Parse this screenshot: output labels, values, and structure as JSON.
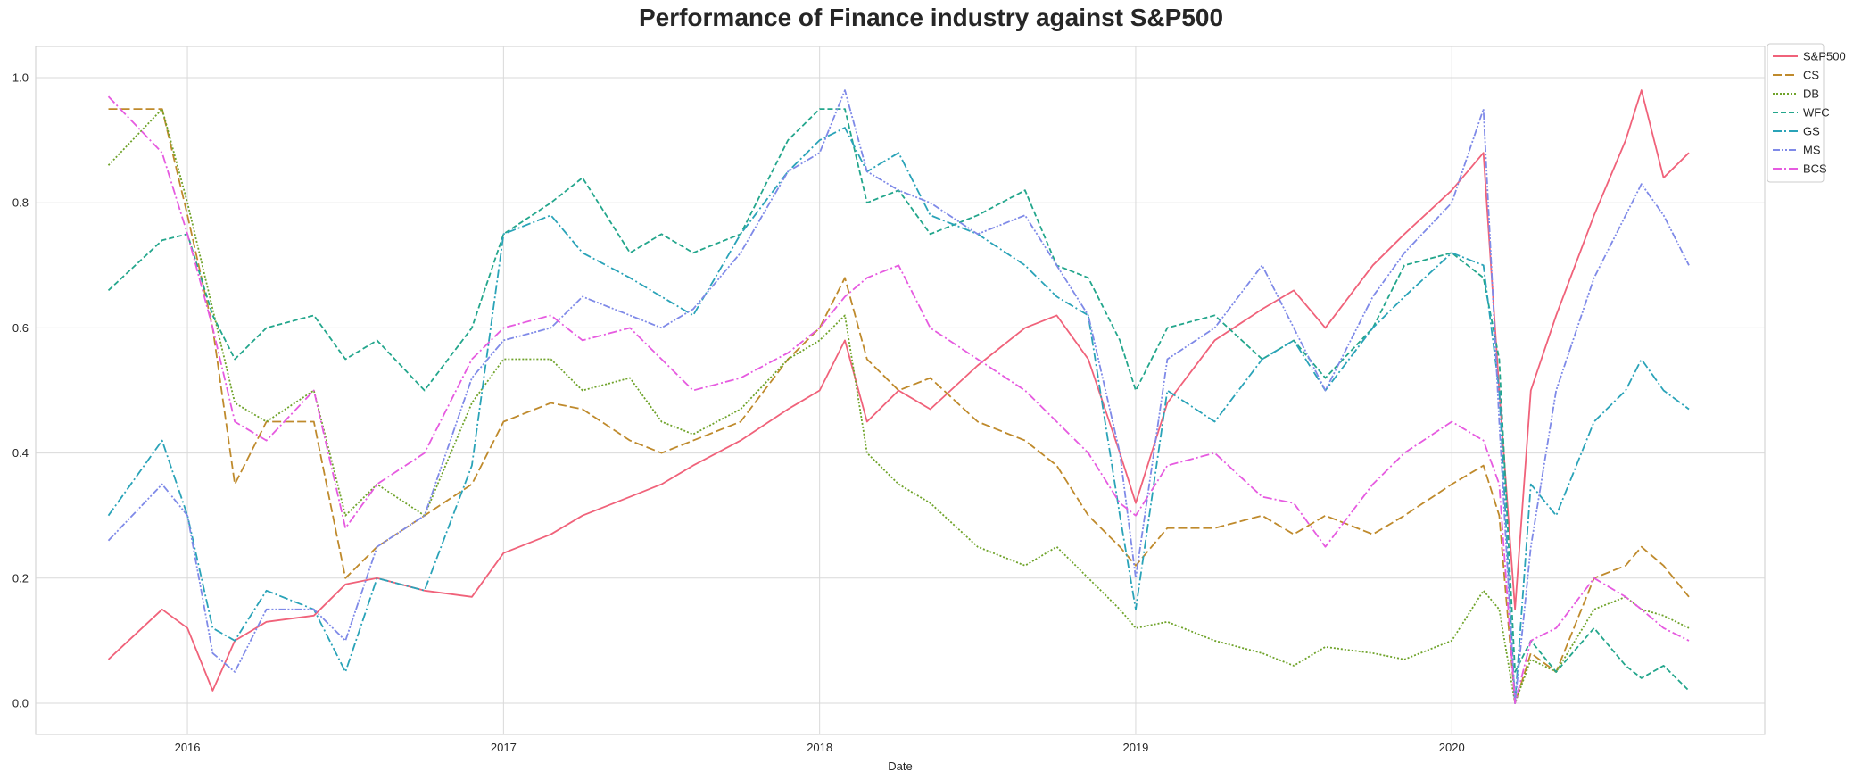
{
  "chart_data": {
    "type": "line",
    "title": "Performance of Finance industry against S&P500",
    "xlabel": "Date",
    "ylabel": "",
    "xlim": [
      2015.52,
      2020.99
    ],
    "ylim": [
      -0.05,
      1.05
    ],
    "x_ticks": [
      2016,
      2017,
      2018,
      2019,
      2020
    ],
    "x_tick_labels": [
      "2016",
      "2017",
      "2018",
      "2019",
      "2020"
    ],
    "y_ticks": [
      0.0,
      0.2,
      0.4,
      0.6,
      0.8,
      1.0
    ],
    "y_tick_labels": [
      "0.0",
      "0.2",
      "0.4",
      "0.6",
      "0.8",
      "1.0"
    ],
    "grid": true,
    "legend_position": "outside-top-right",
    "x": [
      2015.75,
      2015.92,
      2016.0,
      2016.08,
      2016.15,
      2016.25,
      2016.4,
      2016.5,
      2016.6,
      2016.75,
      2016.9,
      2017.0,
      2017.15,
      2017.25,
      2017.4,
      2017.5,
      2017.6,
      2017.75,
      2017.9,
      2018.0,
      2018.08,
      2018.15,
      2018.25,
      2018.35,
      2018.5,
      2018.65,
      2018.75,
      2018.85,
      2018.95,
      2019.0,
      2019.1,
      2019.25,
      2019.4,
      2019.5,
      2019.6,
      2019.75,
      2019.85,
      2020.0,
      2020.1,
      2020.15,
      2020.2,
      2020.25,
      2020.33,
      2020.45,
      2020.55,
      2020.6,
      2020.67,
      2020.75
    ],
    "series": [
      {
        "name": "S&P500",
        "color": "#f0627a",
        "dash": "",
        "values": [
          0.07,
          0.15,
          0.12,
          0.02,
          0.1,
          0.13,
          0.14,
          0.19,
          0.2,
          0.18,
          0.17,
          0.24,
          0.27,
          0.3,
          0.33,
          0.35,
          0.38,
          0.42,
          0.47,
          0.5,
          0.58,
          0.45,
          0.5,
          0.47,
          0.54,
          0.6,
          0.62,
          0.55,
          0.4,
          0.32,
          0.48,
          0.58,
          0.63,
          0.66,
          0.6,
          0.7,
          0.75,
          0.82,
          0.88,
          0.5,
          0.15,
          0.5,
          0.62,
          0.78,
          0.9,
          0.98,
          0.84,
          0.88
        ]
      },
      {
        "name": "CS",
        "color": "#bf8a2c",
        "dash": "10,4",
        "values": [
          0.95,
          0.95,
          0.78,
          0.6,
          0.35,
          0.45,
          0.45,
          0.2,
          0.25,
          0.3,
          0.35,
          0.45,
          0.48,
          0.47,
          0.42,
          0.4,
          0.42,
          0.45,
          0.55,
          0.6,
          0.68,
          0.55,
          0.5,
          0.52,
          0.45,
          0.42,
          0.38,
          0.3,
          0.25,
          0.22,
          0.28,
          0.28,
          0.3,
          0.27,
          0.3,
          0.27,
          0.3,
          0.35,
          0.38,
          0.3,
          0.0,
          0.08,
          0.05,
          0.2,
          0.22,
          0.25,
          0.22,
          0.17
        ]
      },
      {
        "name": "DB",
        "color": "#6fa32a",
        "dash": "2,2",
        "values": [
          0.86,
          0.95,
          0.8,
          0.63,
          0.48,
          0.45,
          0.5,
          0.3,
          0.35,
          0.3,
          0.48,
          0.55,
          0.55,
          0.5,
          0.52,
          0.45,
          0.43,
          0.47,
          0.55,
          0.58,
          0.62,
          0.4,
          0.35,
          0.32,
          0.25,
          0.22,
          0.25,
          0.2,
          0.15,
          0.12,
          0.13,
          0.1,
          0.08,
          0.06,
          0.09,
          0.08,
          0.07,
          0.1,
          0.18,
          0.15,
          0.0,
          0.07,
          0.05,
          0.15,
          0.17,
          0.15,
          0.14,
          0.12
        ]
      },
      {
        "name": "WFC",
        "color": "#23a68c",
        "dash": "6,3",
        "values": [
          0.66,
          0.74,
          0.75,
          0.62,
          0.55,
          0.6,
          0.62,
          0.55,
          0.58,
          0.5,
          0.6,
          0.75,
          0.8,
          0.84,
          0.72,
          0.75,
          0.72,
          0.75,
          0.9,
          0.95,
          0.95,
          0.8,
          0.82,
          0.75,
          0.78,
          0.82,
          0.7,
          0.68,
          0.58,
          0.5,
          0.6,
          0.62,
          0.55,
          0.58,
          0.52,
          0.6,
          0.7,
          0.72,
          0.68,
          0.55,
          0.05,
          0.1,
          0.05,
          0.12,
          0.06,
          0.04,
          0.06,
          0.02
        ]
      },
      {
        "name": "GS",
        "color": "#2aa3b8",
        "dash": "10,3,2,3",
        "values": [
          0.3,
          0.42,
          0.3,
          0.12,
          0.1,
          0.18,
          0.15,
          0.05,
          0.2,
          0.18,
          0.38,
          0.75,
          0.78,
          0.72,
          0.68,
          0.65,
          0.62,
          0.75,
          0.85,
          0.9,
          0.92,
          0.85,
          0.88,
          0.78,
          0.75,
          0.7,
          0.65,
          0.62,
          0.3,
          0.15,
          0.5,
          0.45,
          0.55,
          0.58,
          0.5,
          0.6,
          0.65,
          0.72,
          0.7,
          0.5,
          0.0,
          0.35,
          0.3,
          0.45,
          0.5,
          0.55,
          0.5,
          0.47
        ]
      },
      {
        "name": "MS",
        "color": "#7f8ae8",
        "dash": "8,2,2,2,2,2",
        "values": [
          0.26,
          0.35,
          0.3,
          0.08,
          0.05,
          0.15,
          0.15,
          0.1,
          0.25,
          0.3,
          0.52,
          0.58,
          0.6,
          0.65,
          0.62,
          0.6,
          0.63,
          0.72,
          0.85,
          0.88,
          0.98,
          0.85,
          0.82,
          0.8,
          0.75,
          0.78,
          0.7,
          0.62,
          0.4,
          0.2,
          0.55,
          0.6,
          0.7,
          0.6,
          0.5,
          0.65,
          0.72,
          0.8,
          0.95,
          0.45,
          0.0,
          0.25,
          0.5,
          0.68,
          0.78,
          0.83,
          0.78,
          0.7
        ]
      },
      {
        "name": "BCS",
        "color": "#e65be0",
        "dash": "10,3,2,3",
        "values": [
          0.97,
          0.88,
          0.75,
          0.6,
          0.45,
          0.42,
          0.5,
          0.28,
          0.35,
          0.4,
          0.55,
          0.6,
          0.62,
          0.58,
          0.6,
          0.55,
          0.5,
          0.52,
          0.56,
          0.6,
          0.65,
          0.68,
          0.7,
          0.6,
          0.55,
          0.5,
          0.45,
          0.4,
          0.32,
          0.3,
          0.38,
          0.4,
          0.33,
          0.32,
          0.25,
          0.35,
          0.4,
          0.45,
          0.42,
          0.35,
          0.0,
          0.1,
          0.12,
          0.2,
          0.17,
          0.15,
          0.12,
          0.1
        ]
      }
    ]
  }
}
